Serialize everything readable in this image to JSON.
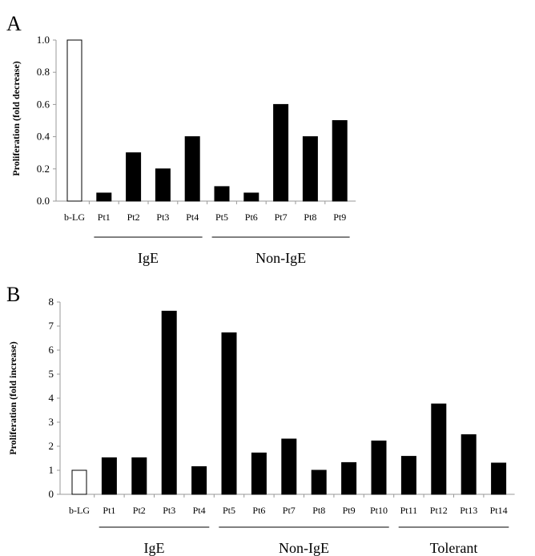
{
  "chart_data": [
    {
      "type": "bar",
      "panel": "A",
      "ylabel": "Proliferation (fold decrease)",
      "ylim": [
        0,
        1.0
      ],
      "yticks": [
        "0.0",
        "0.2",
        "0.4",
        "0.6",
        "0.8",
        "1.0"
      ],
      "categories": [
        "b-LG",
        "Pt1",
        "Pt2",
        "Pt3",
        "Pt4",
        "Pt5",
        "Pt6",
        "Pt7",
        "Pt8",
        "Pt9"
      ],
      "values": [
        1.0,
        0.05,
        0.3,
        0.2,
        0.4,
        0.09,
        0.05,
        0.6,
        0.4,
        0.5
      ],
      "fills": [
        "#ffffff",
        "#000000",
        "#000000",
        "#000000",
        "#000000",
        "#000000",
        "#000000",
        "#000000",
        "#000000",
        "#000000"
      ],
      "groups": [
        {
          "label": "IgE",
          "from": 1,
          "to": 4
        },
        {
          "label": "Non-IgE",
          "from": 5,
          "to": 9
        }
      ]
    },
    {
      "type": "bar",
      "panel": "B",
      "ylabel": "Proliferation (fold increase)",
      "ylim": [
        0,
        8
      ],
      "yticks": [
        "0",
        "1",
        "2",
        "3",
        "4",
        "5",
        "6",
        "7",
        "8"
      ],
      "categories": [
        "b-LG",
        "Pt1",
        "Pt2",
        "Pt3",
        "Pt4",
        "Pt5",
        "Pt6",
        "Pt7",
        "Pt8",
        "Pt9",
        "Pt10",
        "Pt11",
        "Pt12",
        "Pt13",
        "Pt14"
      ],
      "values": [
        1.0,
        1.52,
        1.52,
        7.62,
        1.15,
        6.72,
        1.72,
        2.3,
        1.0,
        1.32,
        2.22,
        1.58,
        3.76,
        2.48,
        1.3
      ],
      "fills": [
        "#ffffff",
        "#000000",
        "#000000",
        "#000000",
        "#000000",
        "#000000",
        "#000000",
        "#000000",
        "#000000",
        "#000000",
        "#000000",
        "#000000",
        "#000000",
        "#000000",
        "#000000"
      ],
      "groups": [
        {
          "label": "IgE",
          "from": 1,
          "to": 4
        },
        {
          "label": "Non-IgE",
          "from": 5,
          "to": 10
        },
        {
          "label": "Tolerant",
          "from": 11,
          "to": 14
        }
      ]
    }
  ]
}
